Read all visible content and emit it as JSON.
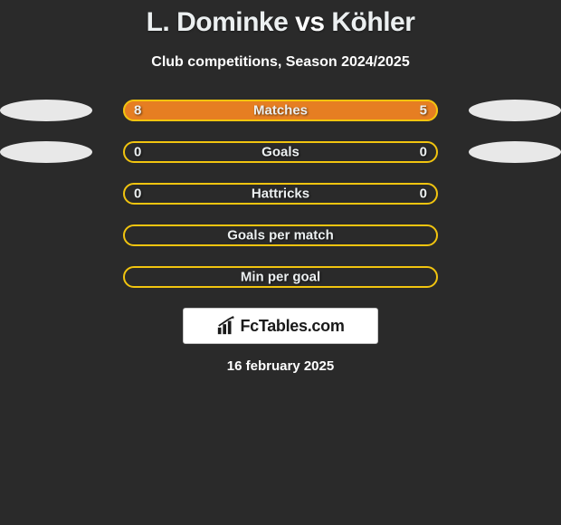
{
  "header": {
    "player_left": "L. Dominke",
    "vs": "vs",
    "player_right": "Köhler",
    "subtitle": "Club competitions, Season 2024/2025"
  },
  "stats": [
    {
      "label": "Matches",
      "left_val": "8",
      "right_val": "5",
      "left_pct": 61.5,
      "right_pct": 38.5,
      "show_avatars": true
    },
    {
      "label": "Goals",
      "left_val": "0",
      "right_val": "0",
      "left_pct": 0,
      "right_pct": 0,
      "show_avatars": true
    },
    {
      "label": "Hattricks",
      "left_val": "0",
      "right_val": "0",
      "left_pct": 0,
      "right_pct": 0,
      "show_avatars": false
    },
    {
      "label": "Goals per match",
      "left_val": "",
      "right_val": "",
      "left_pct": 0,
      "right_pct": 0,
      "show_avatars": false
    },
    {
      "label": "Min per goal",
      "left_val": "",
      "right_val": "",
      "left_pct": 0,
      "right_pct": 0,
      "show_avatars": false
    }
  ],
  "styling": {
    "bar_outline_color": "#f1c40f",
    "bar_fill_color": "#e67e22",
    "background": "#2a2a2a",
    "text_color": "#ecf0f1",
    "avatar_color": "#e8e8e8"
  },
  "footer": {
    "brand": "FcTables.com",
    "date": "16 february 2025"
  }
}
